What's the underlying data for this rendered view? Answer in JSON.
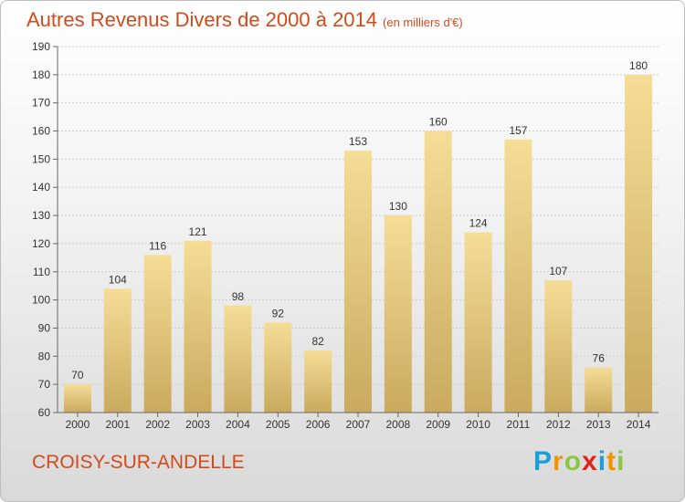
{
  "title": "Autres Revenus Divers de 2000 à 2014",
  "unit_note": "(en milliers d'€)",
  "location": "CROISY-SUR-ANDELLE",
  "brand": {
    "text": "Proxiti",
    "letters": [
      {
        "char": "P",
        "color": "#1a9fd9"
      },
      {
        "char": "r",
        "color": "#f39200"
      },
      {
        "char": "o",
        "color": "#8cc63f"
      },
      {
        "char": "x",
        "color": "#e2231a"
      },
      {
        "char": "i",
        "color": "#1a9fd9"
      },
      {
        "char": "t",
        "color": "#f39200"
      },
      {
        "char": "i",
        "color": "#8cc63f"
      }
    ]
  },
  "chart_data": {
    "type": "bar",
    "categories": [
      "2000",
      "2001",
      "2002",
      "2003",
      "2004",
      "2005",
      "2006",
      "2007",
      "2008",
      "2009",
      "2010",
      "2011",
      "2012",
      "2013",
      "2014"
    ],
    "values": [
      70,
      104,
      116,
      121,
      98,
      92,
      82,
      153,
      130,
      160,
      124,
      157,
      107,
      76,
      180
    ],
    "ylim": [
      60,
      190
    ],
    "yticks": [
      60,
      70,
      80,
      90,
      100,
      110,
      120,
      130,
      140,
      150,
      160,
      170,
      180,
      190
    ],
    "grid": true,
    "colors": {
      "bar_light": "#f5dd96",
      "bar_dark": "#c9aa5e",
      "grid": "#cccccc",
      "axis": "#666666",
      "title": "#d24a1a"
    }
  }
}
